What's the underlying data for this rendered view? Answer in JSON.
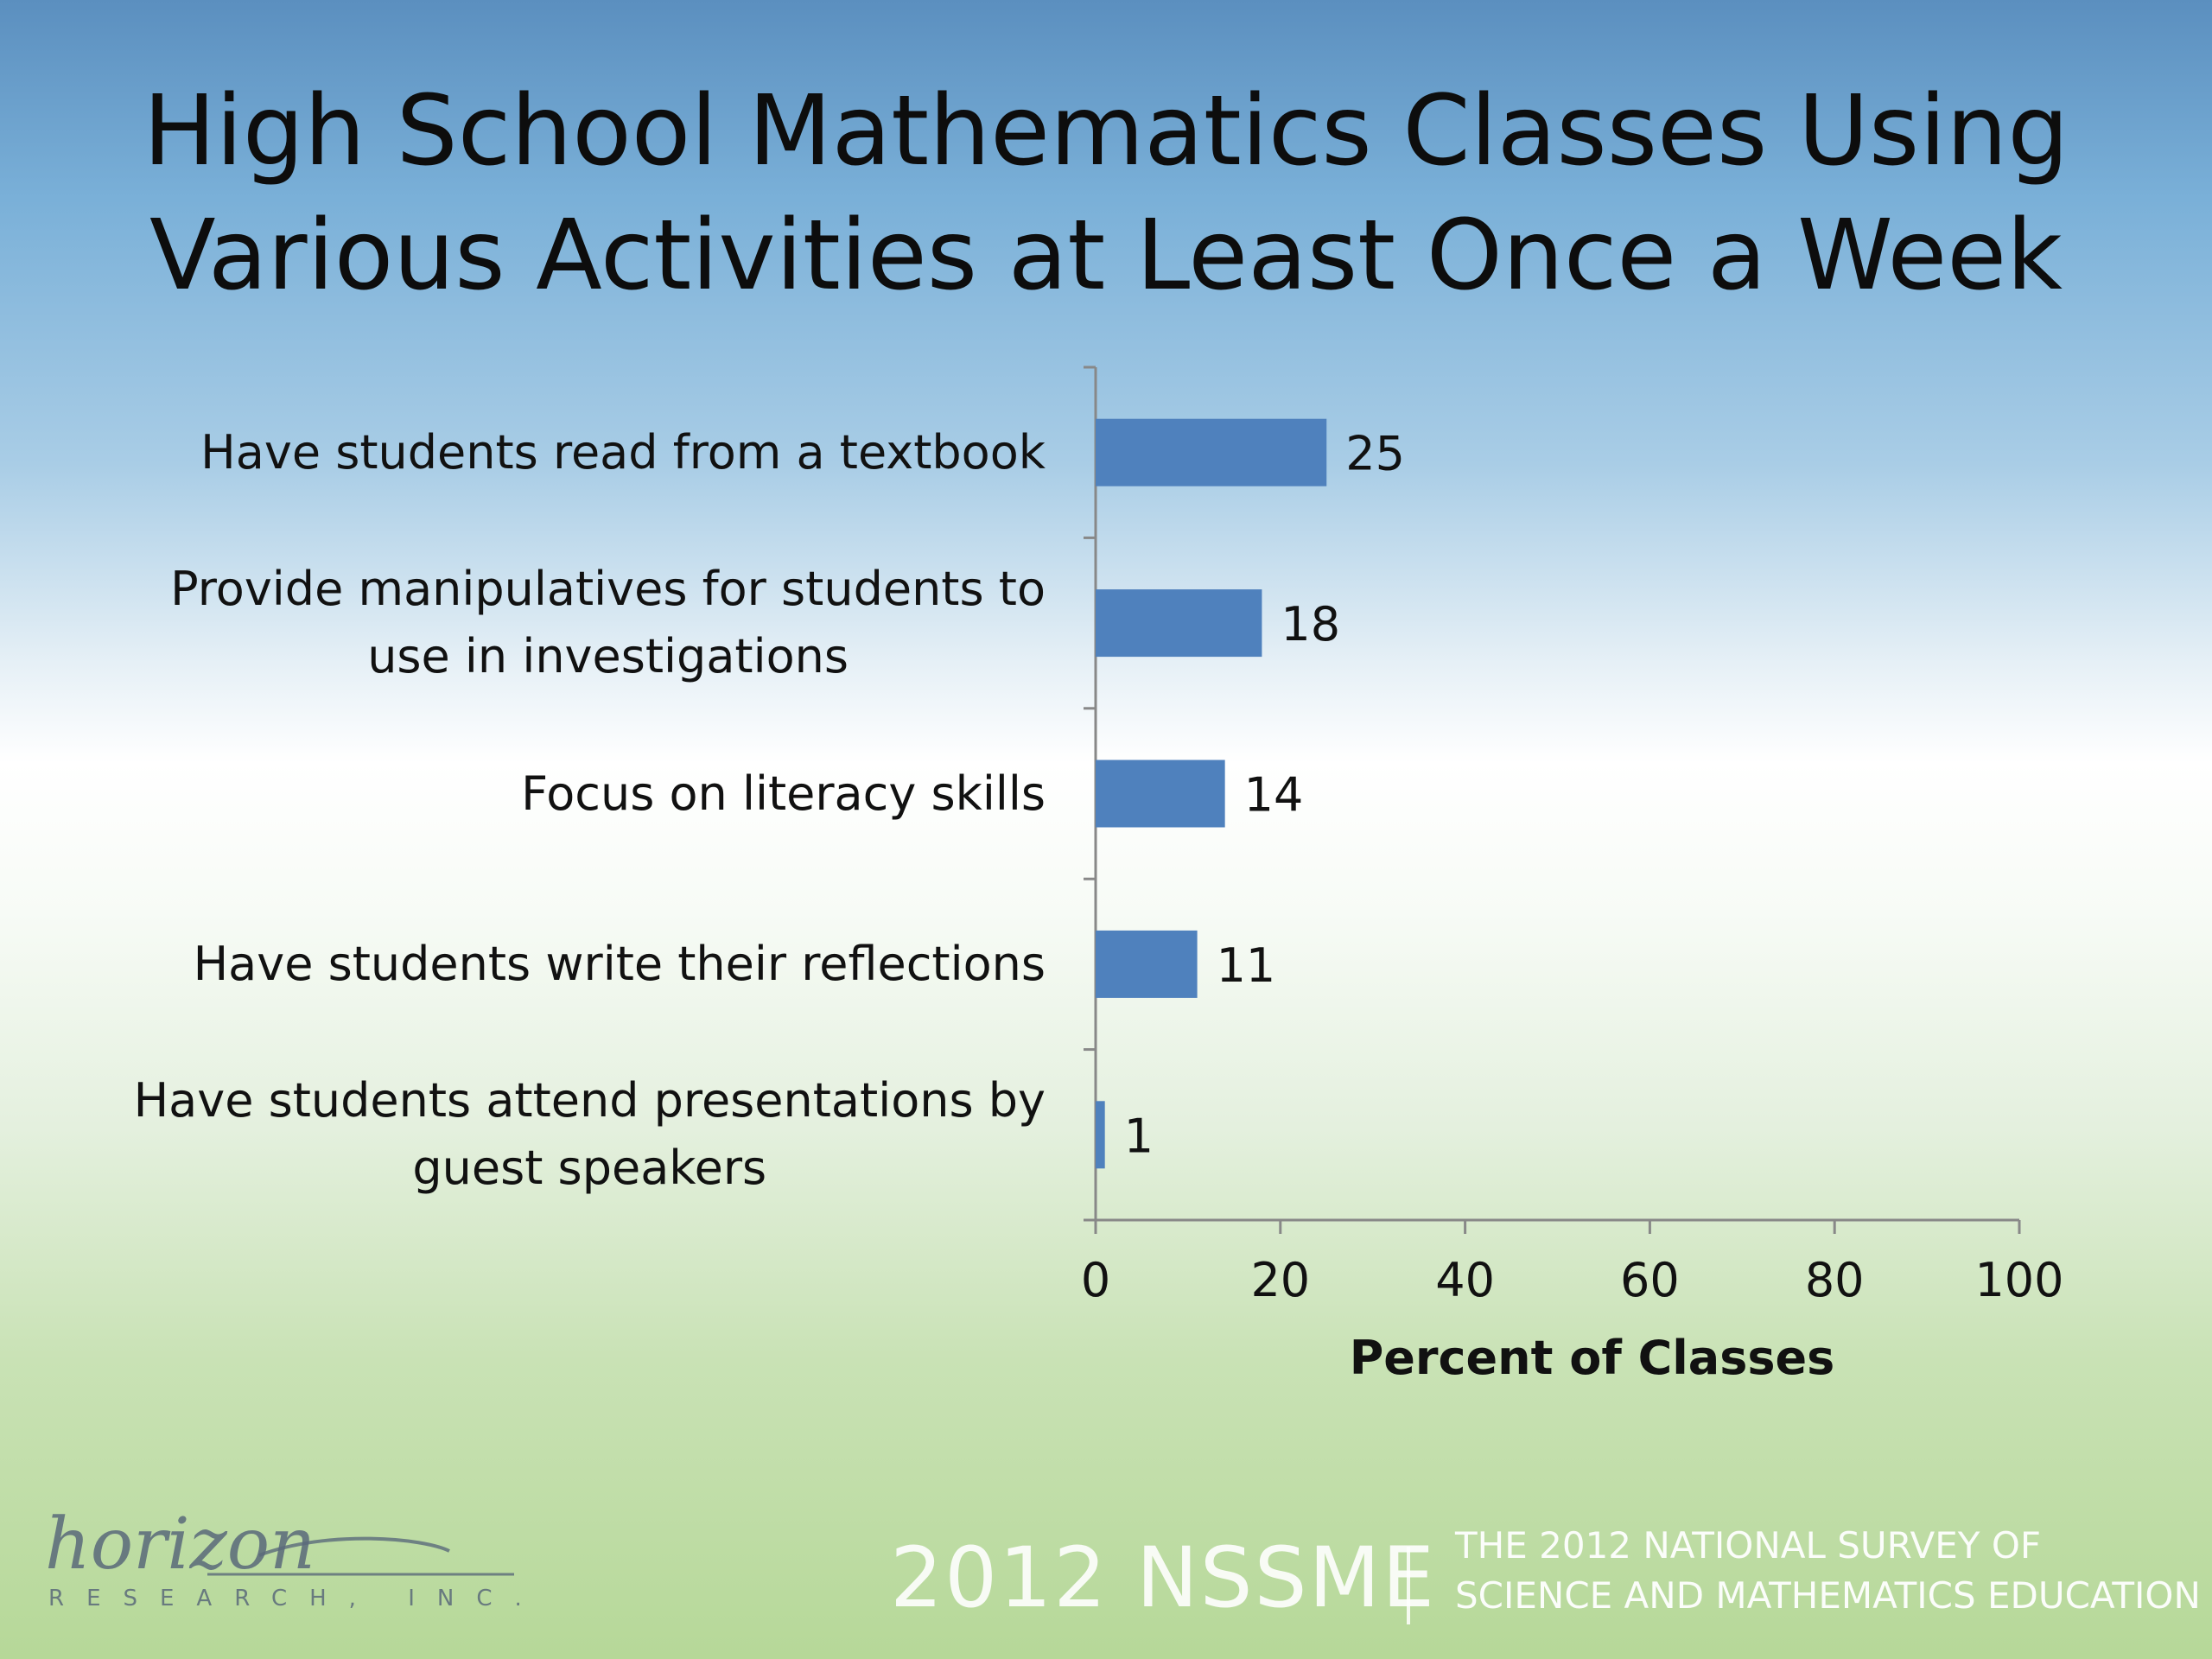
{
  "slide": {
    "title_line1": "High School Mathematics Classes Using",
    "title_line2": "Various Activities at Least Once a Week"
  },
  "chart_data": {
    "type": "bar",
    "orientation": "horizontal",
    "categories": [
      [
        "Have students read from a textbook"
      ],
      [
        "Provide manipulatives for students to",
        "use in investigations"
      ],
      [
        "Focus on literacy skills"
      ],
      [
        "Have students write their reflections"
      ],
      [
        "Have students attend presentations by",
        "guest speakers"
      ]
    ],
    "values": [
      25,
      18,
      14,
      11,
      1
    ],
    "data_labels": [
      "25",
      "18",
      "14",
      "11",
      "1"
    ],
    "xlabel": "Percent of Classes",
    "xlim": [
      0,
      100
    ],
    "xticks": [
      0,
      20,
      40,
      60,
      80,
      100
    ],
    "grid": false,
    "bar_color": "#4f81bd"
  },
  "footer": {
    "logo_script": "horizon",
    "logo_sub": "RESEARCH, INC.",
    "brand": "2012 NSSME",
    "tagline_line1": "THE 2012 NATIONAL SURVEY OF",
    "tagline_line2": "SCIENCE AND MATHEMATICS EDUCATION"
  }
}
